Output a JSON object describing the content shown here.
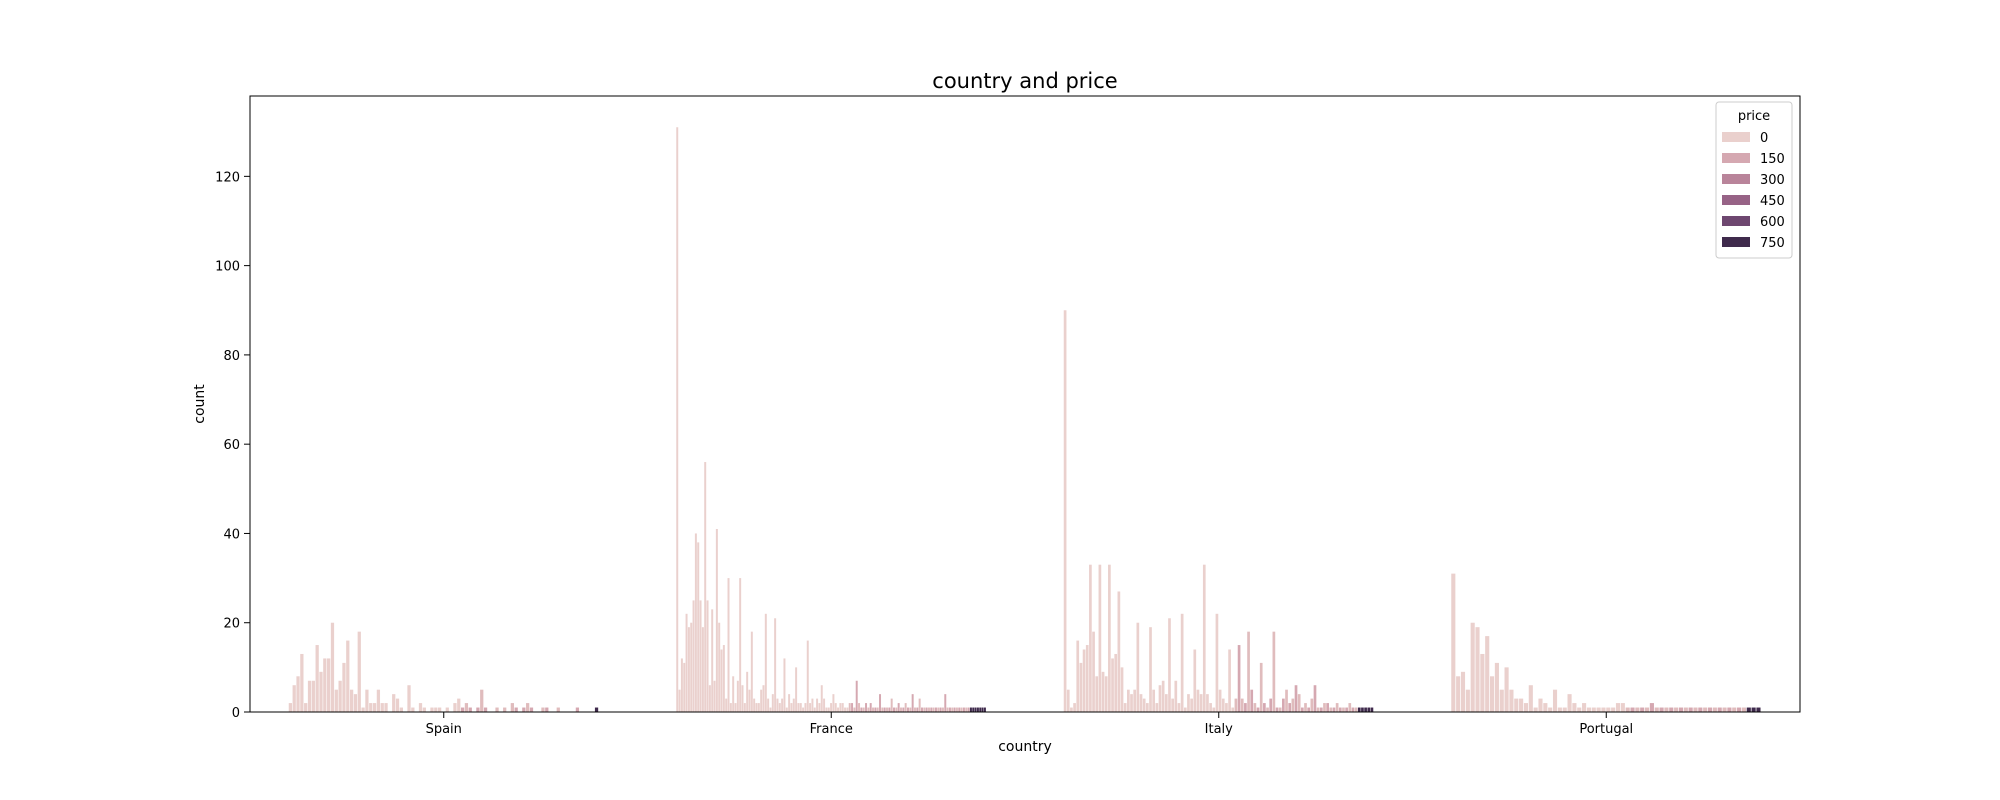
{
  "chart_data": {
    "type": "bar",
    "title": "country and price",
    "xlabel": "country",
    "ylabel": "count",
    "ylim": [
      0,
      138
    ],
    "yticks": [
      "0",
      "20",
      "40",
      "60",
      "80",
      "100",
      "120"
    ],
    "categories": [
      "Spain",
      "France",
      "Italy",
      "Portugal"
    ],
    "legend": {
      "title": "price",
      "placement": "top-right",
      "entries": [
        {
          "label": "0",
          "color": "#ead0cd"
        },
        {
          "label": "150",
          "color": "#d5a8b1"
        },
        {
          "label": "300",
          "color": "#b9849a"
        },
        {
          "label": "450",
          "color": "#976386"
        },
        {
          "label": "600",
          "color": "#6e4770"
        },
        {
          "label": "750",
          "color": "#3f2a4c"
        }
      ]
    },
    "grid": false,
    "groups": [
      {
        "country": "Spain",
        "values": [
          2,
          6,
          8,
          13,
          2,
          7,
          7,
          15,
          9,
          12,
          12,
          20,
          5,
          7,
          11,
          16,
          5,
          4,
          18,
          1,
          5,
          2,
          2,
          5,
          2,
          2,
          0,
          4,
          3,
          1,
          0,
          6,
          1,
          0,
          2,
          1,
          0,
          1,
          1,
          1,
          0,
          1,
          0,
          2,
          3,
          1,
          2,
          1,
          0,
          1,
          5,
          1,
          0,
          0,
          1,
          0,
          1,
          0,
          2,
          1,
          0,
          1,
          2,
          1,
          0,
          0,
          1,
          1,
          0,
          0,
          1,
          0,
          0,
          0,
          0,
          1,
          0,
          0,
          0,
          0,
          1
        ]
      },
      {
        "country": "France",
        "values": [
          131,
          5,
          12,
          11,
          22,
          19,
          20,
          25,
          40,
          38,
          25,
          19,
          56,
          25,
          6,
          23,
          7,
          41,
          20,
          14,
          15,
          3,
          30,
          2,
          8,
          2,
          7,
          30,
          6,
          2,
          9,
          5,
          18,
          3,
          2,
          2,
          5,
          6,
          22,
          3,
          1,
          4,
          21,
          3,
          2,
          3,
          12,
          1,
          4,
          2,
          3,
          10,
          2,
          2,
          1,
          2,
          16,
          2,
          3,
          1,
          3,
          2,
          6,
          3,
          1,
          1,
          2,
          4,
          2,
          1,
          2,
          2,
          1,
          1,
          2,
          2,
          1,
          7,
          2,
          1,
          1,
          2,
          1,
          2,
          1,
          1,
          1,
          4,
          1,
          1,
          1,
          1,
          3,
          1,
          1,
          2,
          1,
          1,
          2,
          1,
          1,
          4,
          1,
          1,
          3,
          1,
          1,
          1,
          1,
          1,
          1,
          1,
          1,
          1,
          1,
          4,
          1,
          1,
          1,
          1,
          1,
          1,
          1,
          1,
          1,
          1,
          1,
          1,
          1,
          1,
          1,
          1,
          1
        ]
      },
      {
        "country": "Italy",
        "values": [
          90,
          5,
          1,
          2,
          16,
          11,
          14,
          15,
          33,
          18,
          8,
          33,
          9,
          8,
          33,
          12,
          13,
          27,
          10,
          2,
          5,
          4,
          5,
          20,
          4,
          3,
          2,
          19,
          5,
          2,
          6,
          7,
          4,
          21,
          3,
          7,
          2,
          22,
          1,
          4,
          3,
          14,
          5,
          4,
          33,
          4,
          2,
          1,
          22,
          5,
          3,
          2,
          14,
          1,
          3,
          15,
          3,
          2,
          18,
          5,
          2,
          1,
          11,
          2,
          1,
          3,
          18,
          1,
          1,
          3,
          5,
          2,
          3,
          6,
          4,
          1,
          2,
          1,
          3,
          6,
          1,
          1,
          2,
          2,
          1,
          1,
          2,
          1,
          1,
          1,
          2,
          1,
          1,
          1,
          1,
          1,
          1,
          1
        ]
      },
      {
        "country": "Portugal",
        "values": [
          31,
          8,
          9,
          5,
          20,
          19,
          13,
          17,
          8,
          11,
          5,
          10,
          5,
          3,
          3,
          2,
          6,
          1,
          3,
          2,
          1,
          5,
          1,
          1,
          4,
          2,
          1,
          2,
          1,
          1,
          1,
          1,
          1,
          1,
          2,
          2,
          1,
          1,
          1,
          1,
          1,
          2,
          1,
          1,
          1,
          1,
          1,
          1,
          1,
          1,
          1,
          1,
          1,
          1,
          1,
          1,
          1,
          1,
          1,
          1,
          1,
          1,
          1,
          1
        ]
      }
    ]
  }
}
